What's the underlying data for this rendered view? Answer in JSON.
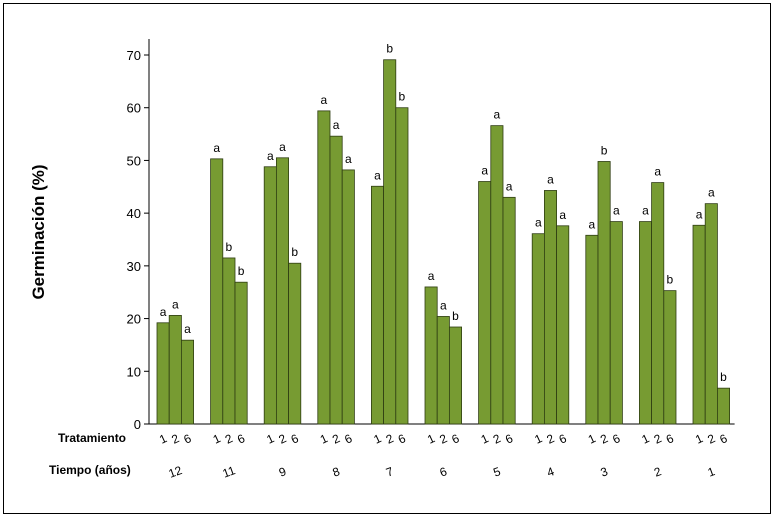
{
  "chart_data": {
    "type": "bar",
    "ylabel": "Germinación (%)",
    "ylim": [
      0,
      73
    ],
    "yticks": [
      0,
      10,
      20,
      30,
      40,
      50,
      60,
      70
    ],
    "row_labels": {
      "treatment": "Tratamiento",
      "time": "Tiempo (años)"
    },
    "treatments": [
      "1",
      "2",
      "6"
    ],
    "bar_color": "#779b32",
    "groups": [
      {
        "time": "12",
        "values": [
          19.2,
          20.6,
          15.9
        ],
        "letters": [
          "a",
          "a",
          "a"
        ]
      },
      {
        "time": "11",
        "values": [
          50.3,
          31.5,
          26.9
        ],
        "letters": [
          "a",
          "b",
          "b"
        ]
      },
      {
        "time": "9",
        "values": [
          48.8,
          50.5,
          30.5
        ],
        "letters": [
          "a",
          "a",
          "b"
        ]
      },
      {
        "time": "8",
        "values": [
          59.4,
          54.6,
          48.2
        ],
        "letters": [
          "a",
          "a",
          "a"
        ]
      },
      {
        "time": "7",
        "values": [
          45.1,
          69.1,
          60.0
        ],
        "letters": [
          "a",
          "b",
          "b"
        ]
      },
      {
        "time": "6",
        "values": [
          26.0,
          20.4,
          18.4
        ],
        "letters": [
          "a",
          "a",
          "b"
        ]
      },
      {
        "time": "5",
        "values": [
          46.0,
          56.6,
          43.0
        ],
        "letters": [
          "a",
          "a",
          "a"
        ]
      },
      {
        "time": "4",
        "values": [
          36.1,
          44.3,
          37.6
        ],
        "letters": [
          "a",
          "a",
          "a"
        ]
      },
      {
        "time": "3",
        "values": [
          35.8,
          49.8,
          38.4
        ],
        "letters": [
          "a",
          "b",
          "a"
        ]
      },
      {
        "time": "2",
        "values": [
          38.4,
          45.8,
          25.3
        ],
        "letters": [
          "a",
          "a",
          "b"
        ]
      },
      {
        "time": "1",
        "values": [
          37.7,
          41.8,
          6.8
        ],
        "letters": [
          "a",
          "a",
          "b"
        ]
      }
    ]
  }
}
